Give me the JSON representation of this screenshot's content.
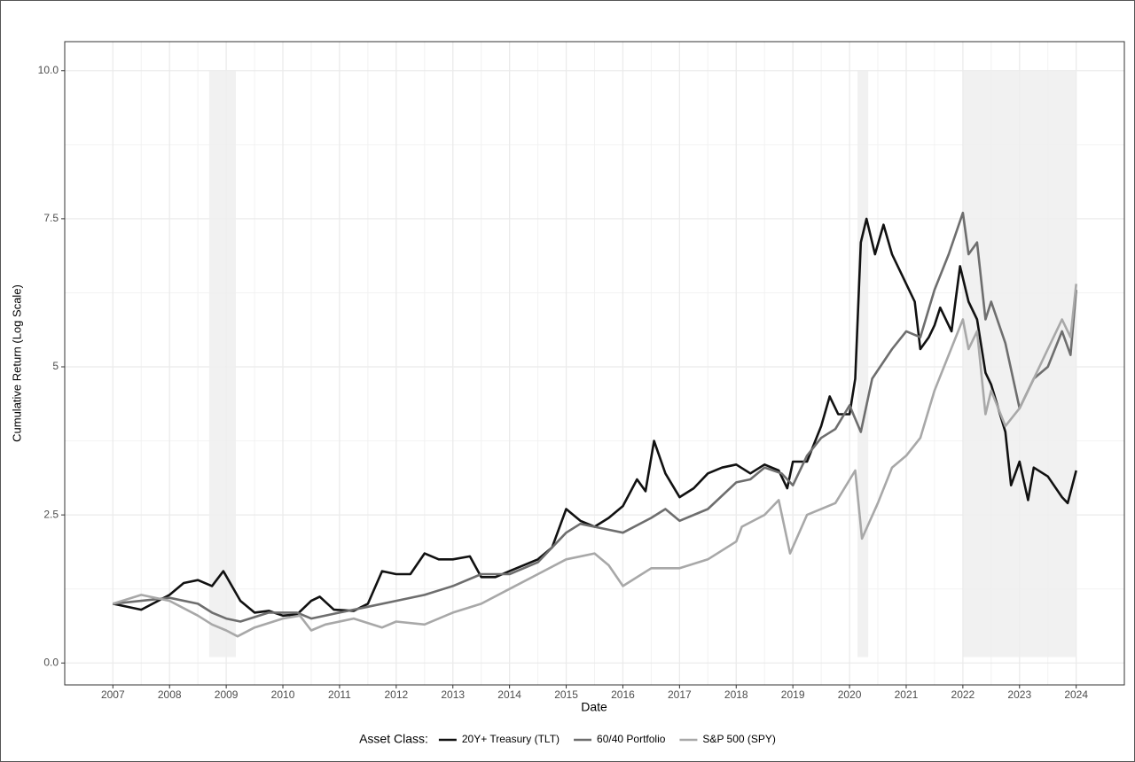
{
  "chart_data": {
    "type": "line",
    "x_label": "Date",
    "y_label": "Cumulative Return (Log Scale)",
    "legend_title": "Asset Class:",
    "legend_position": "bottom",
    "grid": true,
    "minor_grid": true,
    "xlim": [
      2006.15,
      2024.85
    ],
    "ylim": [
      -0.37,
      10.49
    ],
    "xticks": [
      2007,
      2008,
      2009,
      2010,
      2011,
      2012,
      2013,
      2014,
      2015,
      2016,
      2017,
      2018,
      2019,
      2020,
      2021,
      2022,
      2023,
      2024
    ],
    "yticks": [
      {
        "value": 0,
        "label": "0.0"
      },
      2.5,
      5,
      7.5,
      {
        "value": 10,
        "label": "10.0"
      }
    ],
    "shade_ylim": [
      0.1,
      10
    ],
    "shade_color": "#efefef",
    "shaded_periods": [
      {
        "start": 2008.7,
        "end": 2009.17
      },
      {
        "start": 2020.14,
        "end": 2020.33
      },
      {
        "start": 2022.01,
        "end": 2024.0
      }
    ],
    "series": [
      {
        "name": "20Y+ Treasury (TLT)",
        "color": "#111111",
        "x": [
          2007.0,
          2007.5,
          2008.0,
          2008.25,
          2008.5,
          2008.75,
          2008.95,
          2009.25,
          2009.5,
          2009.75,
          2010.0,
          2010.25,
          2010.5,
          2010.65,
          2010.9,
          2011.25,
          2011.5,
          2011.75,
          2012.0,
          2012.25,
          2012.5,
          2012.75,
          2013.0,
          2013.3,
          2013.5,
          2013.75,
          2014.0,
          2014.5,
          2014.75,
          2015.0,
          2015.25,
          2015.5,
          2015.75,
          2016.0,
          2016.25,
          2016.4,
          2016.55,
          2016.75,
          2017.0,
          2017.25,
          2017.5,
          2017.75,
          2018.0,
          2018.25,
          2018.5,
          2018.75,
          2018.9,
          2019.0,
          2019.25,
          2019.5,
          2019.65,
          2019.8,
          2020.0,
          2020.1,
          2020.2,
          2020.3,
          2020.45,
          2020.6,
          2020.75,
          2021.0,
          2021.15,
          2021.25,
          2021.4,
          2021.5,
          2021.6,
          2021.8,
          2021.95,
          2022.1,
          2022.25,
          2022.4,
          2022.5,
          2022.75,
          2022.85,
          2023.0,
          2023.15,
          2023.25,
          2023.5,
          2023.75,
          2023.85,
          2024.0
        ],
        "values": [
          1.0,
          0.9,
          1.15,
          1.35,
          1.4,
          1.3,
          1.55,
          1.05,
          0.85,
          0.88,
          0.8,
          0.82,
          1.05,
          1.12,
          0.9,
          0.88,
          1.0,
          1.55,
          1.5,
          1.5,
          1.85,
          1.75,
          1.75,
          1.8,
          1.45,
          1.45,
          1.55,
          1.75,
          1.95,
          2.6,
          2.4,
          2.3,
          2.45,
          2.65,
          3.1,
          2.9,
          3.75,
          3.2,
          2.8,
          2.95,
          3.2,
          3.3,
          3.35,
          3.2,
          3.35,
          3.25,
          2.95,
          3.4,
          3.4,
          4.0,
          4.5,
          4.2,
          4.2,
          4.8,
          7.1,
          7.5,
          6.9,
          7.4,
          6.9,
          6.4,
          6.1,
          5.3,
          5.5,
          5.7,
          6.0,
          5.6,
          6.7,
          6.1,
          5.8,
          4.9,
          4.7,
          3.9,
          3.0,
          3.4,
          2.75,
          3.3,
          3.15,
          2.8,
          2.7,
          3.25
        ]
      },
      {
        "name": "60/40 Portfolio",
        "color": "#6e6e6e",
        "x": [
          2007.0,
          2007.5,
          2008.0,
          2008.5,
          2008.75,
          2009.0,
          2009.25,
          2009.75,
          2010.25,
          2010.5,
          2011.0,
          2011.5,
          2012.0,
          2012.5,
          2013.0,
          2013.5,
          2014.0,
          2014.5,
          2015.0,
          2015.25,
          2015.75,
          2016.0,
          2016.5,
          2016.75,
          2017.0,
          2017.5,
          2018.0,
          2018.25,
          2018.5,
          2018.8,
          2019.0,
          2019.25,
          2019.5,
          2019.75,
          2020.0,
          2020.2,
          2020.4,
          2020.75,
          2021.0,
          2021.25,
          2021.5,
          2021.75,
          2022.0,
          2022.1,
          2022.25,
          2022.4,
          2022.5,
          2022.75,
          2023.0,
          2023.25,
          2023.5,
          2023.75,
          2023.9,
          2024.0
        ],
        "values": [
          1.0,
          1.05,
          1.1,
          1.0,
          0.85,
          0.75,
          0.7,
          0.85,
          0.85,
          0.75,
          0.85,
          0.95,
          1.05,
          1.15,
          1.3,
          1.5,
          1.5,
          1.7,
          2.2,
          2.35,
          2.25,
          2.2,
          2.45,
          2.6,
          2.4,
          2.6,
          3.05,
          3.1,
          3.3,
          3.2,
          3.0,
          3.5,
          3.8,
          3.95,
          4.35,
          3.9,
          4.8,
          5.3,
          5.6,
          5.5,
          6.3,
          6.9,
          7.6,
          6.9,
          7.1,
          5.8,
          6.1,
          5.4,
          4.3,
          4.8,
          5.0,
          5.6,
          5.2,
          6.3
        ]
      },
      {
        "name": "S&P 500 (SPY)",
        "color": "#a8a8a8",
        "x": [
          2007.0,
          2007.5,
          2008.0,
          2008.5,
          2008.75,
          2009.0,
          2009.2,
          2009.5,
          2010.0,
          2010.3,
          2010.5,
          2010.75,
          2011.25,
          2011.75,
          2012.0,
          2012.5,
          2013.0,
          2013.5,
          2014.0,
          2014.5,
          2015.0,
          2015.5,
          2015.75,
          2016.0,
          2016.5,
          2017.0,
          2017.5,
          2018.0,
          2018.1,
          2018.5,
          2018.75,
          2018.95,
          2019.25,
          2019.75,
          2020.1,
          2020.22,
          2020.5,
          2020.75,
          2021.0,
          2021.25,
          2021.5,
          2021.75,
          2022.0,
          2022.1,
          2022.25,
          2022.4,
          2022.5,
          2022.75,
          2023.0,
          2023.25,
          2023.5,
          2023.75,
          2023.9,
          2024.0
        ],
        "values": [
          1.0,
          1.15,
          1.05,
          0.8,
          0.65,
          0.55,
          0.45,
          0.6,
          0.75,
          0.8,
          0.55,
          0.65,
          0.75,
          0.6,
          0.7,
          0.65,
          0.85,
          1.0,
          1.25,
          1.5,
          1.75,
          1.85,
          1.65,
          1.3,
          1.6,
          1.6,
          1.75,
          2.05,
          2.3,
          2.5,
          2.75,
          1.85,
          2.5,
          2.7,
          3.25,
          2.1,
          2.7,
          3.3,
          3.5,
          3.8,
          4.6,
          5.2,
          5.8,
          5.3,
          5.6,
          4.2,
          4.6,
          4.0,
          4.3,
          4.8,
          5.3,
          5.8,
          5.5,
          6.4
        ]
      }
    ]
  }
}
